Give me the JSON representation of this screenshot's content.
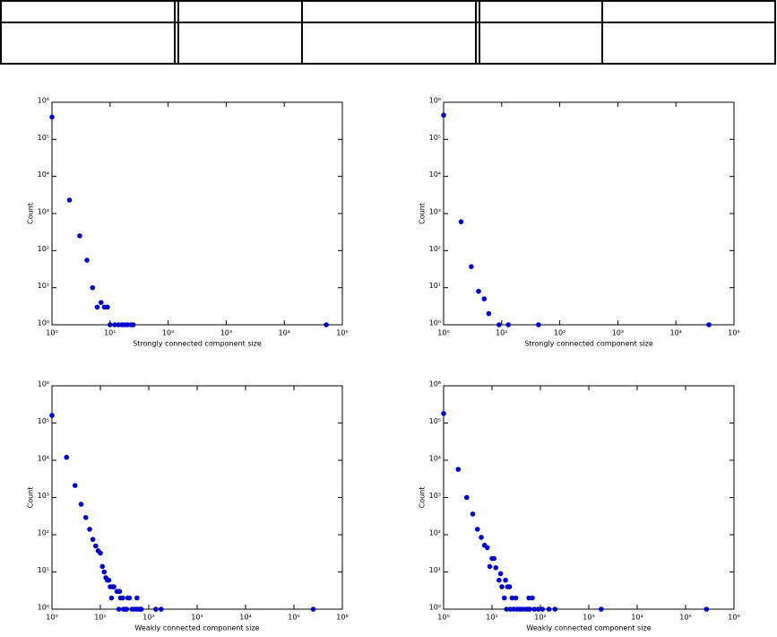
{
  "chart_data": [
    {
      "type": "scatter",
      "xlabel": "Strongly connected component size",
      "ylabel": "Count",
      "color": "#0000cc",
      "xlog": true,
      "ylog": true,
      "xlim": [
        1,
        100000
      ],
      "ylim": [
        1,
        1000000
      ],
      "xticks": [
        {
          "value": 1,
          "label": "10⁰"
        },
        {
          "value": 10,
          "label": "10¹"
        },
        {
          "value": 100,
          "label": "10²"
        },
        {
          "value": 1000,
          "label": "10³"
        },
        {
          "value": 10000,
          "label": "10⁴"
        },
        {
          "value": 100000,
          "label": "10⁵"
        }
      ],
      "yticks": [
        {
          "value": 1,
          "label": "10⁰"
        },
        {
          "value": 10,
          "label": "10¹"
        },
        {
          "value": 100,
          "label": "10²"
        },
        {
          "value": 1000,
          "label": "10³"
        },
        {
          "value": 10000,
          "label": "10⁴"
        },
        {
          "value": 100000,
          "label": "10⁵"
        },
        {
          "value": 1000000,
          "label": "10⁶"
        }
      ],
      "x": [
        1,
        2,
        3,
        4,
        5,
        6,
        7,
        8,
        9,
        10,
        12,
        14,
        16,
        18,
        20,
        23,
        25,
        53000
      ],
      "values": [
        400000,
        2300,
        250,
        55,
        10,
        3,
        4,
        3,
        3,
        1,
        1,
        1,
        1,
        1,
        1,
        1,
        1,
        1
      ]
    },
    {
      "type": "scatter",
      "xlabel": "Strongly connected component size",
      "ylabel": "Count",
      "color": "#0000cc",
      "xlog": true,
      "ylog": true,
      "xlim": [
        1,
        100000
      ],
      "ylim": [
        1,
        1000000
      ],
      "xticks": [
        {
          "value": 1,
          "label": "10⁰"
        },
        {
          "value": 10,
          "label": "10¹"
        },
        {
          "value": 100,
          "label": "10²"
        },
        {
          "value": 1000,
          "label": "10³"
        },
        {
          "value": 10000,
          "label": "10⁴"
        },
        {
          "value": 100000,
          "label": "10⁵"
        }
      ],
      "yticks": [
        {
          "value": 1,
          "label": "10⁰"
        },
        {
          "value": 10,
          "label": "10¹"
        },
        {
          "value": 100,
          "label": "10²"
        },
        {
          "value": 1000,
          "label": "10³"
        },
        {
          "value": 10000,
          "label": "10⁴"
        },
        {
          "value": 100000,
          "label": "10⁵"
        },
        {
          "value": 1000000,
          "label": "10⁶"
        }
      ],
      "x": [
        1,
        2,
        3,
        4,
        5,
        6,
        9,
        13,
        43,
        37000
      ],
      "values": [
        450000,
        600,
        37,
        8,
        5,
        2,
        1,
        1,
        1,
        1
      ]
    },
    {
      "type": "scatter",
      "xlabel": "Weakly connected component size",
      "ylabel": "Count",
      "color": "#0000cc",
      "xlog": true,
      "ylog": true,
      "xlim": [
        1,
        1000000
      ],
      "ylim": [
        1,
        1000000
      ],
      "xticks": [
        {
          "value": 1,
          "label": "10⁰"
        },
        {
          "value": 10,
          "label": "10¹"
        },
        {
          "value": 100,
          "label": "10²"
        },
        {
          "value": 1000,
          "label": "10³"
        },
        {
          "value": 10000,
          "label": "10⁴"
        },
        {
          "value": 100000,
          "label": "10⁵"
        },
        {
          "value": 1000000,
          "label": "10⁶"
        }
      ],
      "yticks": [
        {
          "value": 1,
          "label": "10⁰"
        },
        {
          "value": 10,
          "label": "10¹"
        },
        {
          "value": 100,
          "label": "10²"
        },
        {
          "value": 1000,
          "label": "10³"
        },
        {
          "value": 10000,
          "label": "10⁴"
        },
        {
          "value": 100000,
          "label": "10⁵"
        },
        {
          "value": 1000000,
          "label": "10⁶"
        }
      ],
      "x": [
        1,
        2,
        3,
        4,
        5,
        6,
        7,
        8,
        9,
        10,
        11,
        12,
        13,
        14,
        15,
        16,
        18,
        19,
        17,
        22,
        23,
        25,
        26,
        29,
        37,
        40,
        57,
        24,
        30,
        33,
        35,
        45,
        50,
        55,
        60,
        65,
        70,
        140,
        180,
        250000
      ],
      "values": [
        160000,
        12000,
        2100,
        660,
        290,
        140,
        75,
        50,
        37,
        32,
        14,
        10,
        7,
        6,
        6,
        4,
        4,
        4,
        2,
        3,
        3,
        3,
        2,
        2,
        2,
        2,
        2,
        1,
        1,
        1,
        1,
        1,
        1,
        1,
        1,
        1,
        1,
        1,
        1,
        1
      ]
    },
    {
      "type": "scatter",
      "xlabel": "Weakly connected component size",
      "ylabel": "Count",
      "color": "#0000cc",
      "xlog": true,
      "ylog": true,
      "xlim": [
        1,
        1000000
      ],
      "ylim": [
        1,
        1000000
      ],
      "xticks": [
        {
          "value": 1,
          "label": "10⁰"
        },
        {
          "value": 10,
          "label": "10¹"
        },
        {
          "value": 100,
          "label": "10²"
        },
        {
          "value": 1000,
          "label": "10³"
        },
        {
          "value": 10000,
          "label": "10⁴"
        },
        {
          "value": 100000,
          "label": "10⁵"
        },
        {
          "value": 1000000,
          "label": "10⁶"
        }
      ],
      "yticks": [
        {
          "value": 1,
          "label": "10⁰"
        },
        {
          "value": 10,
          "label": "10¹"
        },
        {
          "value": 100,
          "label": "10²"
        },
        {
          "value": 1000,
          "label": "10³"
        },
        {
          "value": 10000,
          "label": "10⁴"
        },
        {
          "value": 100000,
          "label": "10⁵"
        },
        {
          "value": 1000000,
          "label": "10⁶"
        }
      ],
      "x": [
        1,
        2,
        3,
        4,
        5,
        6,
        7,
        8,
        9,
        10,
        11,
        12,
        14,
        15,
        16,
        18,
        19,
        21,
        23,
        26,
        31,
        58,
        68,
        20,
        24,
        28,
        33,
        38,
        43,
        50,
        55,
        60,
        75,
        90,
        110,
        150,
        200,
        1800,
        270000
      ],
      "values": [
        180000,
        5700,
        1000,
        360,
        140,
        85,
        52,
        45,
        14,
        23,
        23,
        13,
        6,
        9,
        4,
        2,
        6,
        4,
        4,
        2,
        2,
        2,
        2,
        1,
        1,
        1,
        1,
        1,
        1,
        1,
        1,
        1,
        1,
        1,
        1,
        1,
        1,
        1,
        1
      ]
    }
  ]
}
